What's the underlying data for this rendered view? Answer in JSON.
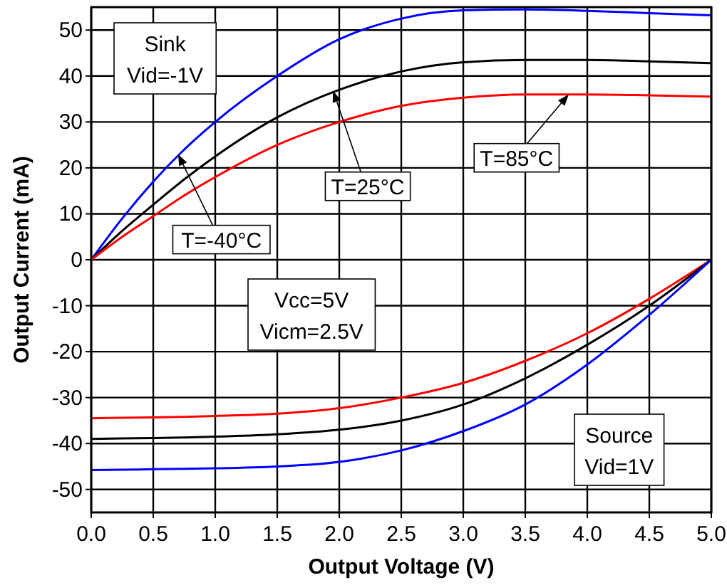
{
  "chart_data": {
    "type": "line",
    "xlabel": "Output Voltage (V)",
    "ylabel": "Output Current (mA)",
    "x": [
      0,
      0.25,
      0.5,
      0.75,
      1.0,
      1.5,
      2.0,
      2.5,
      3.0,
      3.5,
      4.0,
      4.5,
      5.0
    ],
    "series": [
      {
        "color": "#0000ff",
        "values": [
          0,
          9,
          17,
          24,
          30,
          40,
          48,
          52.5,
          54.3,
          54.5,
          54.2,
          53.7,
          53.2
        ]
      },
      {
        "color": "#000000",
        "values": [
          0,
          6.3,
          12,
          17.5,
          22.5,
          31,
          37,
          41,
          43,
          43.5,
          43.5,
          43.2,
          42.8
        ]
      },
      {
        "color": "#ff0000",
        "values": [
          0,
          5,
          9.5,
          14,
          18,
          25,
          30,
          33.5,
          35.3,
          36,
          36,
          35.8,
          35.5
        ]
      },
      {
        "color": "#ff0000",
        "values": [
          -34.5,
          -34.4,
          -34.3,
          -34.2,
          -34,
          -33.5,
          -32.3,
          -30,
          -26.8,
          -22,
          -16,
          -8.5,
          0
        ]
      },
      {
        "color": "#000000",
        "values": [
          -39,
          -38.9,
          -38.8,
          -38.7,
          -38.5,
          -38,
          -37,
          -35,
          -31.5,
          -25.8,
          -18.5,
          -10,
          0
        ]
      },
      {
        "color": "#0000ff",
        "values": [
          -45.8,
          -45.7,
          -45.6,
          -45.5,
          -45.4,
          -45,
          -44,
          -41.5,
          -37.3,
          -31.5,
          -22.8,
          -12,
          0
        ]
      }
    ],
    "xlim": [
      0,
      5
    ],
    "ylim": [
      -55,
      55
    ],
    "xticks": [
      {
        "value": 0,
        "label": "0.0"
      },
      {
        "value": 0.5,
        "label": "0.5"
      },
      {
        "value": 1,
        "label": "1.0"
      },
      {
        "value": 1.5,
        "label": "1.5"
      },
      {
        "value": 2,
        "label": "2.0"
      },
      {
        "value": 2.5,
        "label": "2.5"
      },
      {
        "value": 3,
        "label": "3.0"
      },
      {
        "value": 3.5,
        "label": "3.5"
      },
      {
        "value": 4,
        "label": "4.0"
      },
      {
        "value": 4.5,
        "label": "4.5"
      },
      {
        "value": 5,
        "label": "5.0"
      }
    ],
    "yticks": [
      -50,
      -40,
      -30,
      -20,
      -10,
      0,
      10,
      20,
      30,
      40,
      50
    ],
    "grid": true,
    "annotations": [
      {
        "text": "T=-40°C",
        "x": 0.7,
        "y": 23
      },
      {
        "text": "T=25°C",
        "x": 1.95,
        "y": 36.8
      },
      {
        "text": "T=85°C",
        "x": 3.85,
        "y": 36
      },
      "Sink\nVid=-1V",
      "Vcc=5V\nVicm=2.5V",
      "Source\nVid=1V"
    ]
  }
}
